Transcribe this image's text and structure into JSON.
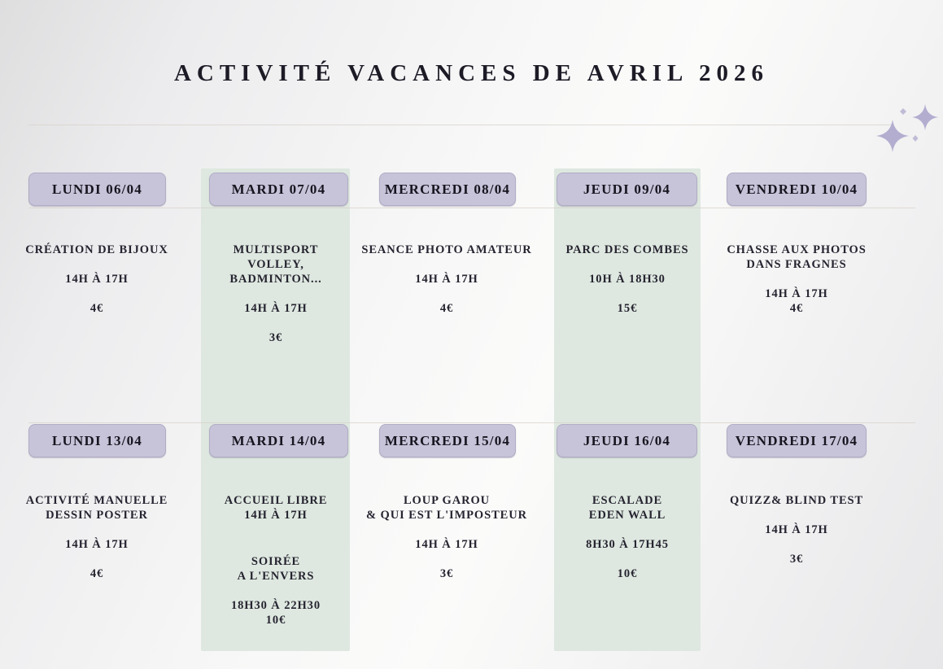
{
  "page": {
    "title": "ACTIVITÉ VACANCES DE AVRIL 2026"
  },
  "colors": {
    "accent_lavender": "#c7c3d9",
    "highlight_green": "#dee8e0",
    "text_dark": "#1d1b26",
    "divider": "#d8d1c9",
    "sparkle": "#b3aed0"
  },
  "decor": {
    "sparkles_icon": "sparkles-icon"
  },
  "schedule": {
    "weeks": [
      {
        "days": [
          {
            "header": "LUNDI 06/04",
            "highlight": false,
            "blocks": [
              [
                "CRÉATION DE BIJOUX"
              ],
              [
                "14H À 17H"
              ],
              [
                "4€"
              ]
            ]
          },
          {
            "header": "MARDI 07/04",
            "highlight": true,
            "blocks": [
              [
                "MULTISPORT",
                "VOLLEY, BADMINTON..."
              ],
              [
                "14H À 17H"
              ],
              [
                "3€"
              ]
            ]
          },
          {
            "header": "MERCREDI 08/04",
            "highlight": false,
            "blocks": [
              [
                "SEANCE PHOTO AMATEUR"
              ],
              [
                "14H À 17H"
              ],
              [
                "4€"
              ]
            ]
          },
          {
            "header": "JEUDI 09/04",
            "highlight": true,
            "blocks": [
              [
                "PARC DES COMBES"
              ],
              [
                "10H À 18H30"
              ],
              [
                "15€"
              ]
            ]
          },
          {
            "header": "VENDREDI 10/04",
            "highlight": false,
            "blocks": [
              [
                "CHASSE AUX PHOTOS",
                "DANS FRAGNES"
              ],
              [
                "14H À 17H",
                "4€"
              ]
            ]
          }
        ]
      },
      {
        "days": [
          {
            "header": "LUNDI 13/04",
            "highlight": false,
            "blocks": [
              [
                "ACTIVITÉ MANUELLE",
                "DESSIN POSTER"
              ],
              [
                "14H À 17H"
              ],
              [
                "4€"
              ]
            ]
          },
          {
            "header": "MARDI 14/04",
            "highlight": true,
            "blocks": [
              [
                "ACCUEIL LIBRE",
                "14H À 17H"
              ],
              [
                "SOIRÉE",
                "A L'ENVERS"
              ],
              [
                "18H30 À 22H30",
                "10€"
              ]
            ]
          },
          {
            "header": "MERCREDI 15/04",
            "highlight": false,
            "blocks": [
              [
                "LOUP GAROU",
                "& QUI EST L'IMPOSTEUR"
              ],
              [
                "14H À 17H"
              ],
              [
                "3€"
              ]
            ]
          },
          {
            "header": "JEUDI 16/04",
            "highlight": true,
            "blocks": [
              [
                "ESCALADE",
                "EDEN WALL"
              ],
              [
                "8H30 À 17H45"
              ],
              [
                "10€"
              ]
            ]
          },
          {
            "header": "VENDREDI 17/04",
            "highlight": false,
            "blocks": [
              [
                "QUIZZ& BLIND TEST"
              ],
              [
                "14H À 17H"
              ],
              [
                "3€"
              ]
            ]
          }
        ]
      }
    ]
  }
}
